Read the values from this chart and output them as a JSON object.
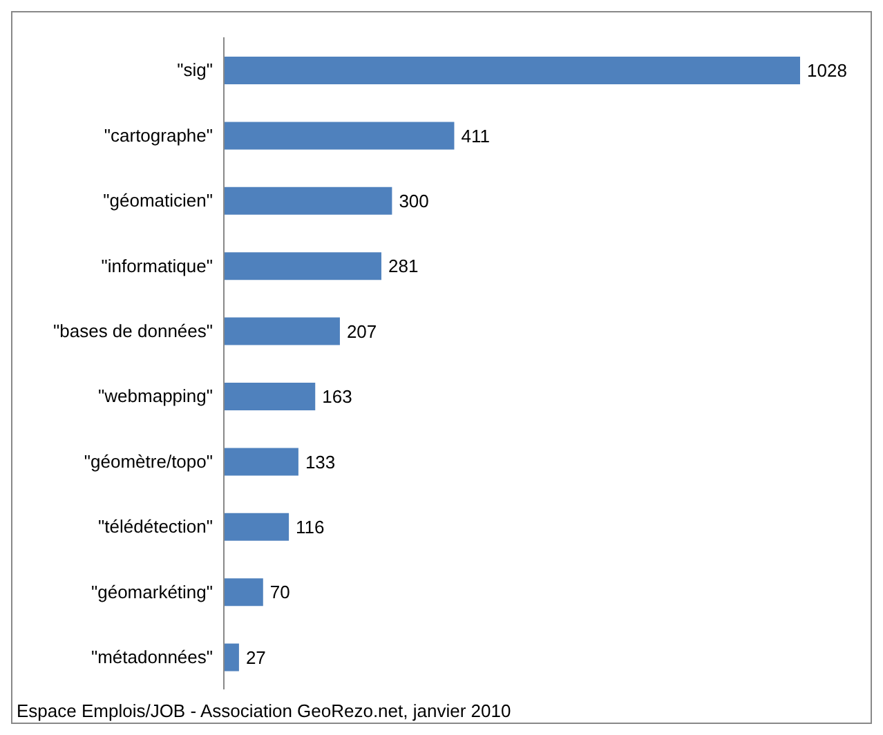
{
  "chart_data": {
    "type": "bar",
    "orientation": "horizontal",
    "categories": [
      "\"sig\"",
      "\"cartographe\"",
      "\"géomaticien\"",
      "\"informatique\"",
      "\"bases de données\"",
      "\"webmapping\"",
      "\"géomètre/topo\"",
      "\"télédétection\"",
      "\"géomarkéting\"",
      "\"métadonnées\""
    ],
    "values": [
      1028,
      411,
      300,
      281,
      207,
      163,
      133,
      116,
      70,
      27
    ],
    "color": "#4f81bd",
    "data_labels": true,
    "annotations": [
      "Espace Emplois/JOB - Association GeoRezo.net, janvier 2010"
    ]
  }
}
